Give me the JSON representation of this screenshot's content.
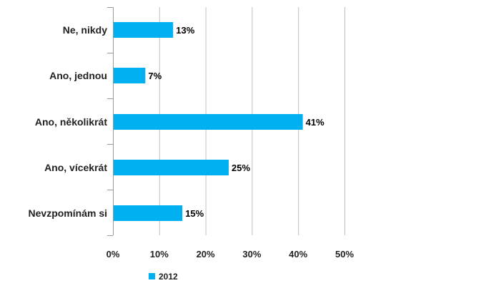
{
  "chart_data": {
    "type": "bar",
    "orientation": "horizontal",
    "categories": [
      "Ne, nikdy",
      "Ano, jednou",
      "Ano, několikrát",
      "Ano, vícekrát",
      "Nevzpomínám si"
    ],
    "series": [
      {
        "name": "2012",
        "values": [
          13,
          7,
          41,
          25,
          15
        ],
        "labels": [
          "13%",
          "7%",
          "41%",
          "25%",
          "15%"
        ],
        "color": "#00b0f0"
      }
    ],
    "xlim": [
      0,
      50
    ],
    "ticks": [
      0,
      10,
      20,
      30,
      40,
      50
    ],
    "tick_labels": [
      "0%",
      "10%",
      "20%",
      "30%",
      "40%",
      "50%"
    ],
    "grid": true,
    "grid_color": "#c0c0c0",
    "legend_position": "bottom",
    "title": "",
    "xlabel": "",
    "ylabel": ""
  }
}
